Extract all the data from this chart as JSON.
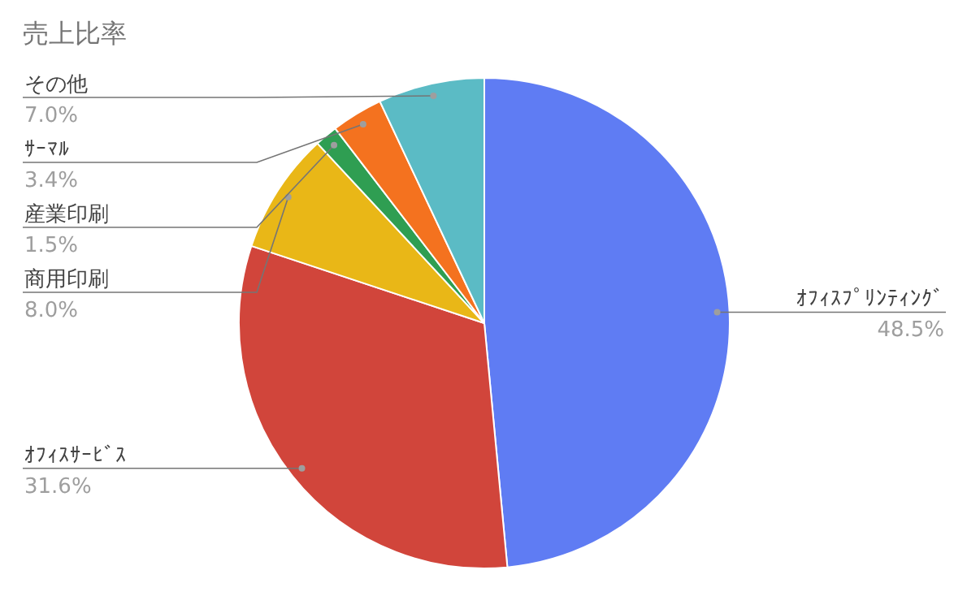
{
  "chart_data": {
    "type": "pie",
    "title": "売上比率",
    "categories": [
      "ｵﾌｨｽﾌﾟﾘﾝﾃｨﾝｸﾞ",
      "ｵﾌｨｽｻｰﾋﾞｽ",
      "商用印刷",
      "産業印刷",
      "ｻｰﾏﾙ",
      "その他"
    ],
    "values": [
      48.5,
      31.6,
      8.0,
      1.5,
      3.4,
      7.0
    ],
    "value_labels": [
      "48.5%",
      "31.6%",
      "8.0%",
      "1.5%",
      "3.4%",
      "7.0%"
    ],
    "colors": [
      "#5f7cf3",
      "#d1453b",
      "#e9b717",
      "#2f9e52",
      "#f4721f",
      "#5bbbc5"
    ]
  }
}
